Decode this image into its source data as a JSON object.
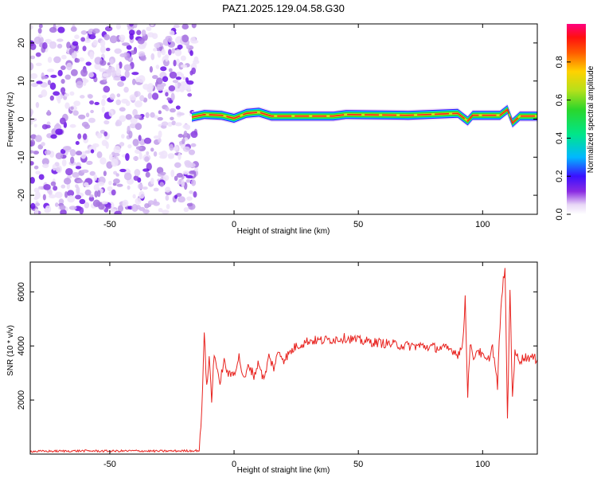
{
  "title": "PAZ1.2025.129.04.58.G30",
  "chart_data": [
    {
      "type": "heatmap",
      "xlabel": "Height of straight line (km)",
      "ylabel": "Frequency (Hz)",
      "xlim": [
        -82,
        122
      ],
      "ylim": [
        -25,
        25
      ],
      "x_ticks": [
        -50,
        0,
        50,
        100
      ],
      "y_ticks": [
        -20,
        -10,
        0,
        10,
        20
      ],
      "colorbar": {
        "label": "Normalized spectral amplitude",
        "range": [
          0,
          1
        ],
        "ticks": [
          "0.0",
          "0.2",
          "0.4",
          "0.6",
          "0.8"
        ]
      },
      "noise_region_x": [
        -82,
        -17
      ],
      "signal_region_x": [
        -17,
        122
      ],
      "ridge": [
        {
          "x": -17,
          "freq": 0.5
        },
        {
          "x": -12,
          "freq": 1.2
        },
        {
          "x": -5,
          "freq": 1.0
        },
        {
          "x": 0,
          "freq": 0.2
        },
        {
          "x": 5,
          "freq": 1.5
        },
        {
          "x": 10,
          "freq": 1.8
        },
        {
          "x": 15,
          "freq": 0.8
        },
        {
          "x": 40,
          "freq": 0.8
        },
        {
          "x": 45,
          "freq": 1.2
        },
        {
          "x": 70,
          "freq": 1.0
        },
        {
          "x": 90,
          "freq": 1.5
        },
        {
          "x": 94,
          "freq": -0.5
        },
        {
          "x": 96,
          "freq": 1.0
        },
        {
          "x": 107,
          "freq": 1.0
        },
        {
          "x": 110,
          "freq": 2.5
        },
        {
          "x": 112,
          "freq": -1.0
        },
        {
          "x": 115,
          "freq": 0.8
        },
        {
          "x": 122,
          "freq": 0.8
        }
      ]
    },
    {
      "type": "line",
      "xlabel": "Height of straight line (km)",
      "ylabel": "SNR (10 * v/v)",
      "xlim": [
        -82,
        122
      ],
      "ylim": [
        0,
        7100
      ],
      "x_ticks": [
        -50,
        0,
        50,
        100
      ],
      "y_ticks": [
        2000,
        4000,
        6000
      ],
      "series": [
        {
          "color": "#e8231f",
          "x": [
            -82,
            -70,
            -60,
            -50,
            -40,
            -30,
            -20,
            -14,
            -13,
            -12,
            -11,
            -10,
            -9,
            -8,
            -6,
            -4,
            -2,
            0,
            2,
            4,
            6,
            8,
            10,
            12,
            14,
            16,
            18,
            20,
            22,
            25,
            28,
            30,
            35,
            40,
            45,
            50,
            55,
            60,
            65,
            70,
            75,
            80,
            85,
            88,
            90,
            92,
            93,
            94,
            95,
            96,
            98,
            100,
            102,
            104,
            106,
            107,
            108,
            109,
            110,
            111,
            112,
            113,
            115,
            118,
            122
          ],
          "values": [
            100,
            110,
            120,
            110,
            120,
            110,
            120,
            130,
            1500,
            4600,
            2400,
            3600,
            2000,
            3800,
            2600,
            3400,
            2900,
            3000,
            3600,
            2700,
            3300,
            2900,
            3400,
            2700,
            3600,
            3200,
            3800,
            3500,
            3700,
            4000,
            4100,
            4200,
            4200,
            4250,
            4300,
            4200,
            4150,
            4100,
            4050,
            4000,
            4000,
            3950,
            3900,
            3850,
            3700,
            4000,
            5800,
            2200,
            4200,
            3500,
            3900,
            3600,
            3400,
            4000,
            2500,
            4800,
            6100,
            7000,
            1200,
            6100,
            2200,
            3700,
            3500,
            3600,
            3500
          ]
        }
      ]
    }
  ]
}
